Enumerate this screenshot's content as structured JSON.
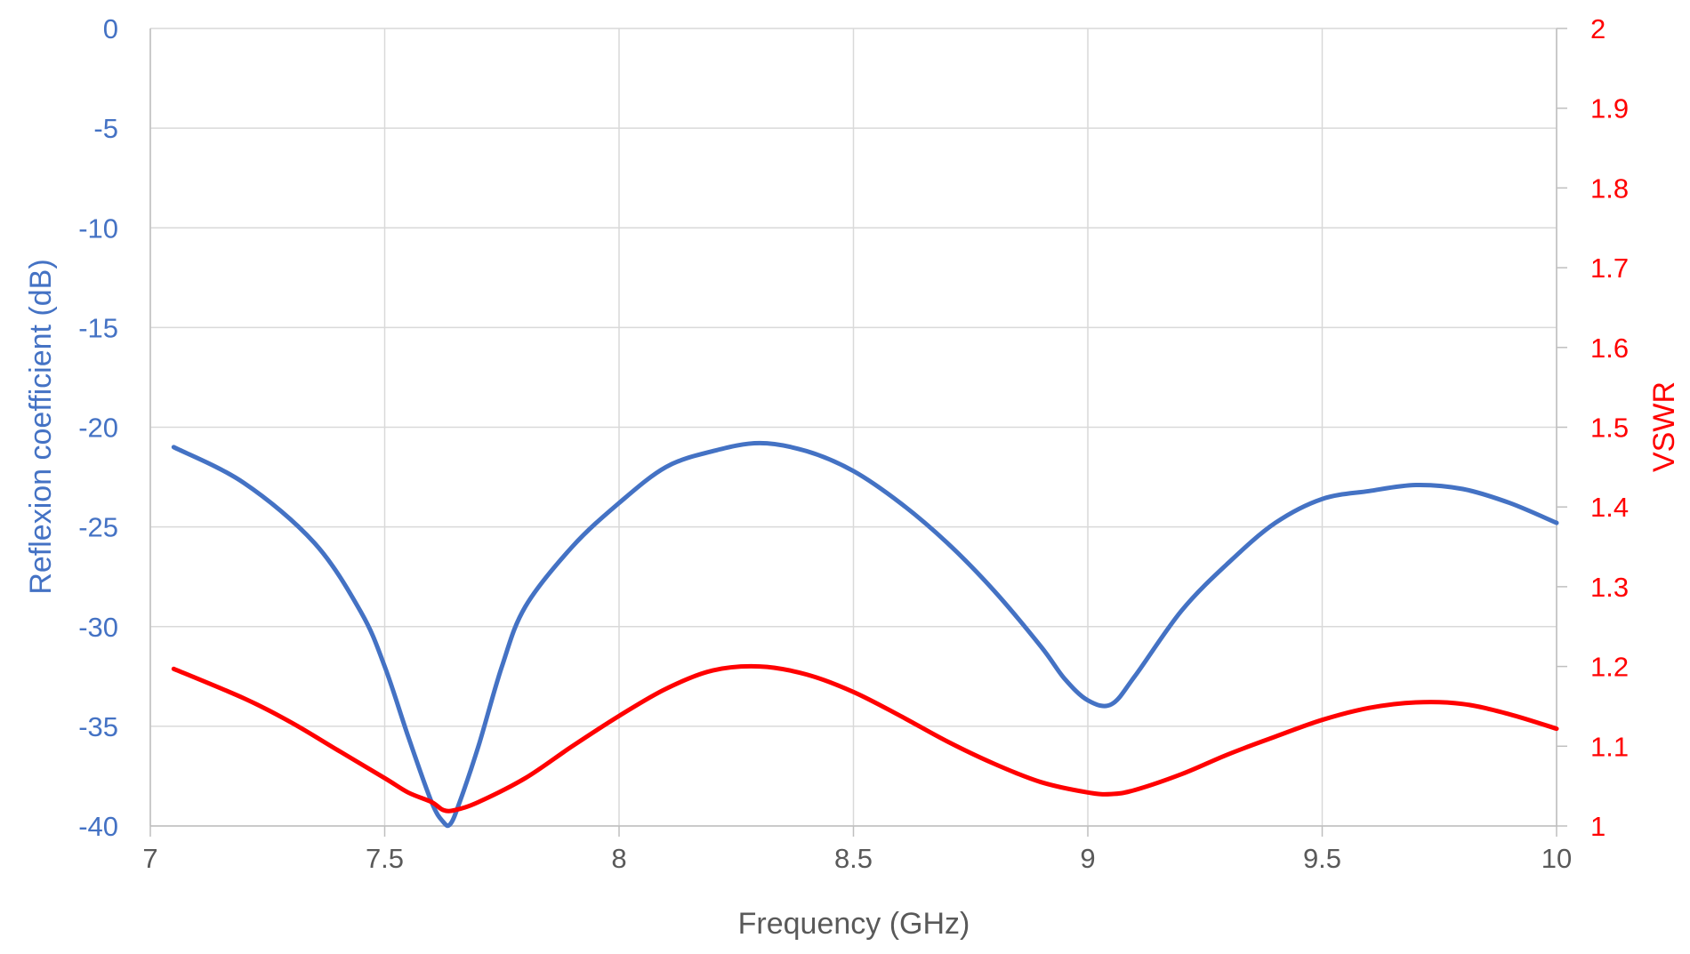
{
  "chart_data": {
    "type": "line",
    "x_axis": {
      "label": "Frequency (GHz)",
      "range": [
        7,
        10
      ],
      "ticks": [
        7,
        7.5,
        8,
        8.5,
        9,
        9.5,
        10
      ],
      "tick_labels": [
        "7",
        "7.5",
        "8",
        "8.5",
        "9",
        "9.5",
        "10"
      ]
    },
    "y_left": {
      "label": "Reflexion coefficient (dB)",
      "range": [
        -40,
        0
      ],
      "ticks": [
        0,
        -5,
        -10,
        -15,
        -20,
        -25,
        -30,
        -35,
        -40
      ],
      "tick_labels": [
        "0",
        "-5",
        "-10",
        "-15",
        "-20",
        "-25",
        "-30",
        "-35",
        "-40"
      ],
      "color": "#4472C4"
    },
    "y_right": {
      "label": "VSWR",
      "range": [
        1,
        2
      ],
      "ticks": [
        2,
        1.9,
        1.8,
        1.7,
        1.6,
        1.5,
        1.4,
        1.3,
        1.2,
        1.1,
        1
      ],
      "tick_labels": [
        "2",
        "1.9",
        "1.8",
        "1.7",
        "1.6",
        "1.5",
        "1.4",
        "1.3",
        "1.2",
        "1.1",
        "1"
      ],
      "color": "#FF0000"
    },
    "grid": true,
    "legend": "none",
    "series": [
      {
        "axis": "left",
        "color": "#4472C4",
        "x": [
          7.05,
          7.2,
          7.35,
          7.45,
          7.5,
          7.55,
          7.6,
          7.625,
          7.64,
          7.66,
          7.7,
          7.75,
          7.8,
          7.9,
          8.0,
          8.1,
          8.2,
          8.3,
          8.4,
          8.5,
          8.6,
          8.7,
          8.8,
          8.9,
          8.95,
          9.0,
          9.05,
          9.1,
          9.2,
          9.3,
          9.4,
          9.5,
          9.6,
          9.7,
          9.8,
          9.9,
          10.0
        ],
        "y": [
          -21,
          -22.8,
          -25.8,
          -29.3,
          -32.0,
          -35.5,
          -38.8,
          -39.8,
          -39.9,
          -38.8,
          -36.0,
          -32.0,
          -29.0,
          -26.0,
          -23.8,
          -22.0,
          -21.2,
          -20.8,
          -21.2,
          -22.2,
          -23.8,
          -25.8,
          -28.2,
          -31.0,
          -32.6,
          -33.7,
          -33.9,
          -32.5,
          -29.2,
          -26.8,
          -24.8,
          -23.6,
          -23.2,
          -22.9,
          -23.1,
          -23.8,
          -24.8
        ]
      },
      {
        "axis": "right",
        "color": "#FF0000",
        "x": [
          7.05,
          7.2,
          7.3,
          7.4,
          7.5,
          7.55,
          7.6,
          7.625,
          7.65,
          7.7,
          7.8,
          7.9,
          8.0,
          8.1,
          8.2,
          8.3,
          8.4,
          8.5,
          8.6,
          8.7,
          8.8,
          8.9,
          9.0,
          9.05,
          9.1,
          9.2,
          9.3,
          9.4,
          9.5,
          9.6,
          9.7,
          9.8,
          9.9,
          10.0
        ],
        "y": [
          1.197,
          1.16,
          1.13,
          1.095,
          1.06,
          1.042,
          1.03,
          1.02,
          1.02,
          1.03,
          1.06,
          1.1,
          1.138,
          1.172,
          1.195,
          1.2,
          1.19,
          1.168,
          1.138,
          1.106,
          1.078,
          1.055,
          1.042,
          1.04,
          1.045,
          1.065,
          1.09,
          1.112,
          1.133,
          1.148,
          1.155,
          1.153,
          1.14,
          1.122
        ]
      }
    ]
  }
}
